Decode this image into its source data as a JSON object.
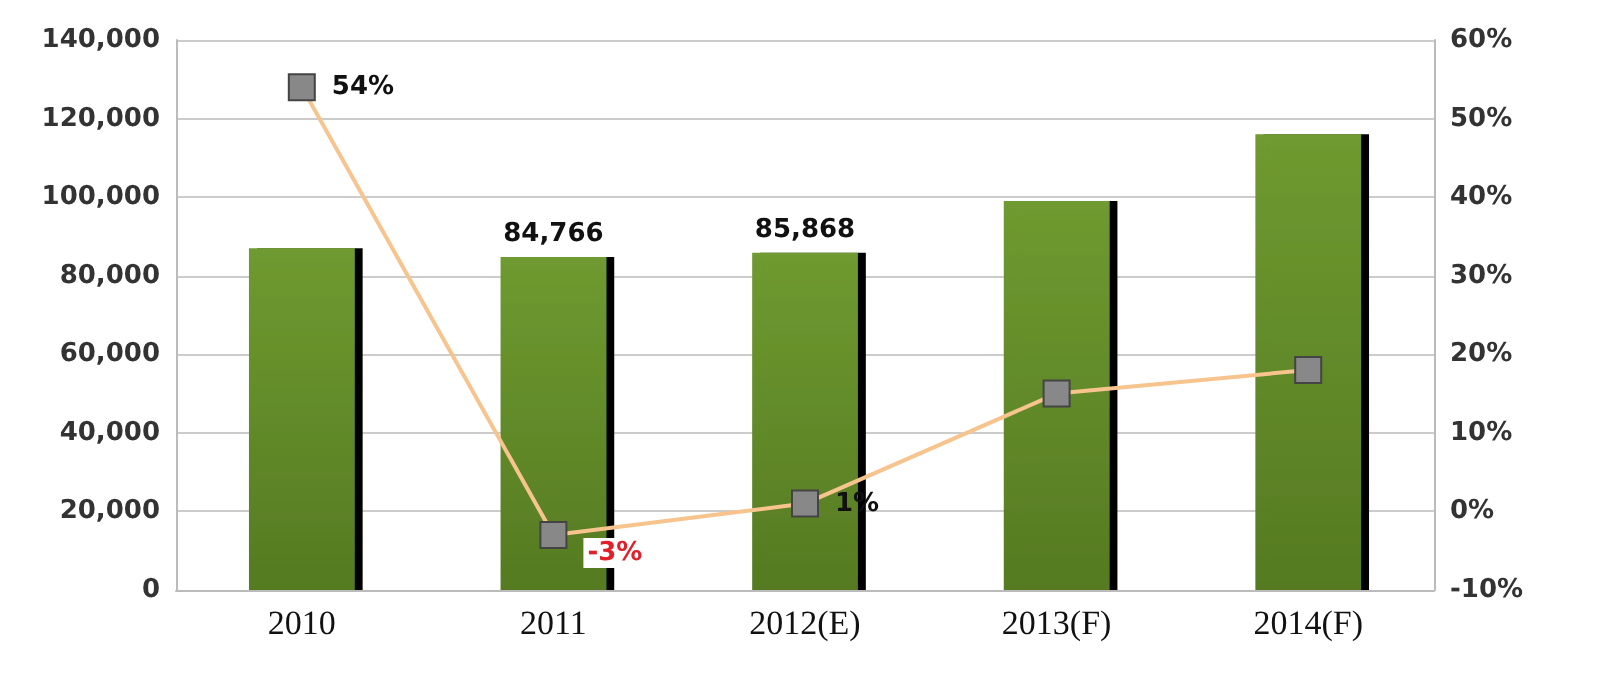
{
  "chart_data": {
    "type": "bar",
    "categories": [
      "2010",
      "2011",
      "2012(E)",
      "2013(F)",
      "2014(F)"
    ],
    "series": [
      {
        "color": "#6f9a30",
        "values": [
          87000,
          84766,
          85868,
          99000,
          116000
        ],
        "value_labels": [
          null,
          "84,766",
          "85,868",
          null,
          null
        ]
      },
      {
        "type": "line",
        "axis": "y2",
        "color": "#f7c48e",
        "values": [
          54,
          -3,
          1,
          15,
          18
        ],
        "value_labels": [
          "54%",
          "-3%",
          "1%",
          null,
          null
        ]
      }
    ],
    "ylim": [
      0,
      140000
    ],
    "yticks": [
      0,
      {
        "value": 20000,
        "label": "20,000"
      },
      {
        "value": 40000,
        "label": "40,000"
      },
      {
        "value": 60000,
        "label": "60,000"
      },
      {
        "value": 80000,
        "label": "80,000"
      },
      {
        "value": 100000,
        "label": "100,000"
      },
      {
        "value": 120000,
        "label": "120,000"
      },
      {
        "value": 140000,
        "label": "140,000"
      }
    ],
    "y2lim": [
      -10,
      60
    ],
    "y2ticks": [
      {
        "value": -10,
        "label": "-10%"
      },
      {
        "value": 0,
        "label": "0%"
      },
      {
        "value": 10,
        "label": "10%"
      },
      {
        "value": 20,
        "label": "20%"
      },
      {
        "value": 30,
        "label": "30%"
      },
      {
        "value": 40,
        "label": "40%"
      },
      {
        "value": 50,
        "label": "50%"
      },
      {
        "value": 60,
        "label": "60%"
      }
    ],
    "grid": "y",
    "marker": "square"
  }
}
